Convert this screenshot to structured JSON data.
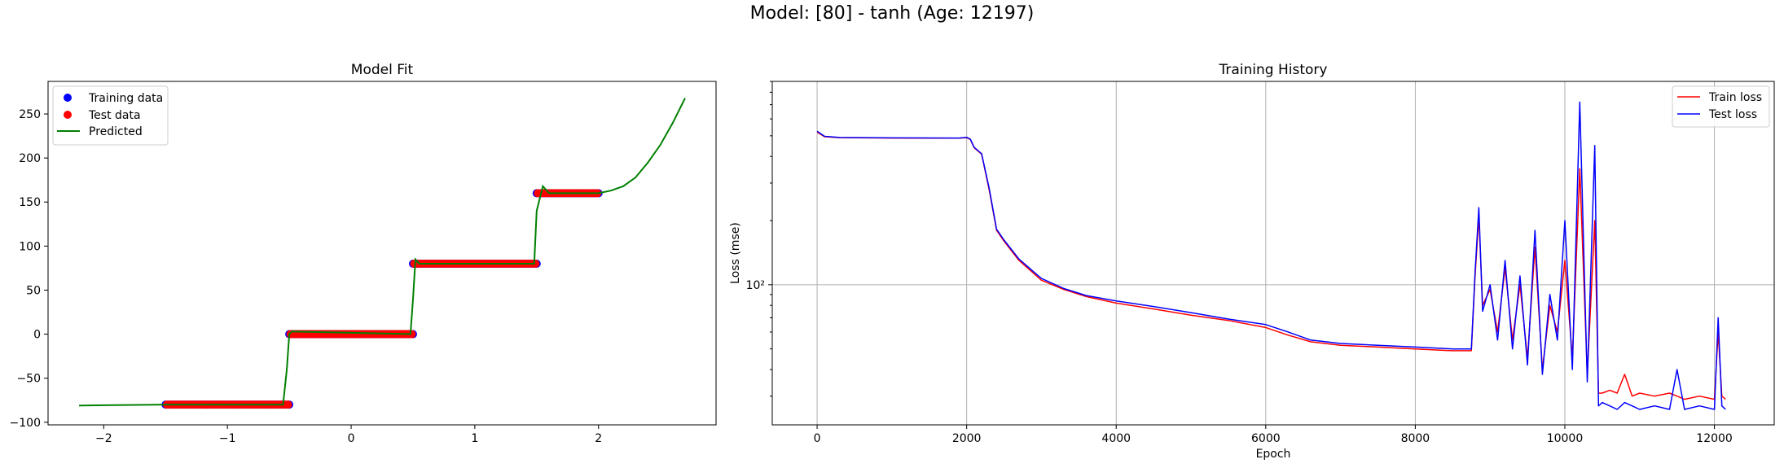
{
  "suptitle": "Model: [80] - tanh (Age: 12197)",
  "colors": {
    "training": "#0000ff",
    "test": "#ff0000",
    "predicted": "#008000",
    "train_loss": "#ff0000",
    "test_loss": "#0000ff",
    "grid": "#b0b0b0"
  },
  "chart_data": [
    {
      "type": "scatter",
      "title": "Model Fit",
      "xlabel": "",
      "ylabel": "",
      "xlim": [
        -2.45,
        2.95
      ],
      "ylim": [
        -103,
        287
      ],
      "xticks": [
        -2,
        -1,
        0,
        1,
        2
      ],
      "yticks": [
        -100,
        -50,
        0,
        50,
        100,
        150,
        200,
        250
      ],
      "legend": {
        "placement": "top-left",
        "entries": [
          "Training data",
          "Test data",
          "Predicted"
        ]
      },
      "grid": false,
      "series": [
        {
          "name": "Training data",
          "segments": [
            {
              "x_from": -1.5,
              "x_to": -0.5,
              "y": -80
            },
            {
              "x_from": -0.5,
              "x_to": 0.5,
              "y": 0
            },
            {
              "x_from": 0.5,
              "x_to": 1.5,
              "y": 80
            },
            {
              "x_from": 1.5,
              "x_to": 2.0,
              "y": 160
            }
          ]
        },
        {
          "name": "Test data",
          "segments": [
            {
              "x_from": -1.5,
              "x_to": -0.5,
              "y": -80
            },
            {
              "x_from": -0.5,
              "x_to": 0.5,
              "y": 0
            },
            {
              "x_from": 0.5,
              "x_to": 1.5,
              "y": 80
            },
            {
              "x_from": 1.5,
              "x_to": 2.0,
              "y": 160
            }
          ]
        },
        {
          "name": "Predicted",
          "x": [
            -2.2,
            -1.5,
            -0.55,
            -0.52,
            -0.5,
            -0.48,
            0.48,
            0.5,
            0.52,
            0.55,
            1.48,
            1.5,
            1.55,
            1.6,
            2.0,
            2.1,
            2.2,
            2.3,
            2.4,
            2.5,
            2.6,
            2.7
          ],
          "y": [
            -81,
            -80,
            -80,
            -40,
            0,
            3,
            0,
            40,
            85,
            80,
            80,
            140,
            168,
            160,
            160,
            163,
            168,
            178,
            195,
            215,
            240,
            268
          ]
        }
      ]
    },
    {
      "type": "line",
      "title": "Training History",
      "xlabel": "Epoch",
      "ylabel": "Loss (mse)",
      "yscale": "log",
      "xlim": [
        -600,
        12800
      ],
      "ylim": [
        22,
        900
      ],
      "xticks": [
        0,
        2000,
        4000,
        6000,
        8000,
        10000,
        12000
      ],
      "ytick_label": "10²",
      "ytick_value": 100,
      "grid": true,
      "legend": {
        "placement": "top-right",
        "entries": [
          "Train loss",
          "Test loss"
        ]
      },
      "series": [
        {
          "name": "Train loss",
          "x": [
            0,
            100,
            300,
            1000,
            1900,
            2000,
            2050,
            2100,
            2200,
            2300,
            2400,
            2500,
            2700,
            3000,
            3300,
            3600,
            4000,
            4500,
            5000,
            5500,
            6000,
            6300,
            6600,
            7000,
            7500,
            8000,
            8500,
            8750,
            8800,
            8850,
            8900,
            9000,
            9100,
            9200,
            9300,
            9400,
            9500,
            9600,
            9700,
            9800,
            9900,
            10000,
            10100,
            10200,
            10300,
            10400,
            10450,
            10500,
            10600,
            10700,
            10800,
            10900,
            11000,
            11200,
            11400,
            11500,
            11600,
            11800,
            12000,
            12050,
            12100,
            12150
          ],
          "y": [
            520,
            495,
            490,
            488,
            487,
            490,
            480,
            440,
            410,
            280,
            180,
            160,
            130,
            105,
            95,
            88,
            82,
            77,
            72,
            68,
            63,
            58,
            54,
            52,
            51,
            50,
            49,
            49,
            110,
            210,
            80,
            95,
            60,
            120,
            55,
            100,
            45,
            150,
            40,
            80,
            60,
            130,
            45,
            350,
            38,
            200,
            31,
            31,
            32,
            31,
            38,
            30,
            31,
            30,
            31,
            30,
            29,
            30,
            29,
            60,
            30,
            29
          ]
        },
        {
          "name": "Test loss",
          "x": [
            0,
            100,
            300,
            1000,
            1900,
            2000,
            2050,
            2100,
            2200,
            2300,
            2400,
            2500,
            2700,
            3000,
            3300,
            3600,
            4000,
            4500,
            5000,
            5500,
            6000,
            6300,
            6600,
            7000,
            7500,
            8000,
            8500,
            8750,
            8800,
            8850,
            8900,
            9000,
            9100,
            9200,
            9300,
            9400,
            9500,
            9600,
            9700,
            9800,
            9900,
            10000,
            10100,
            10200,
            10300,
            10400,
            10450,
            10500,
            10600,
            10700,
            10800,
            10900,
            11000,
            11200,
            11400,
            11500,
            11600,
            11800,
            12000,
            12050,
            12100,
            12150
          ],
          "y": [
            525,
            497,
            491,
            489,
            488,
            492,
            482,
            442,
            412,
            285,
            182,
            162,
            132,
            107,
            96,
            89,
            84,
            79,
            74,
            69,
            65,
            60,
            55,
            53,
            52,
            51,
            50,
            50,
            115,
            230,
            75,
            100,
            55,
            130,
            50,
            110,
            42,
            180,
            38,
            90,
            55,
            200,
            40,
            720,
            35,
            450,
            27,
            28,
            27,
            26,
            28,
            27,
            26,
            27,
            26,
            40,
            26,
            27,
            26,
            70,
            27,
            26
          ]
        }
      ]
    }
  ]
}
